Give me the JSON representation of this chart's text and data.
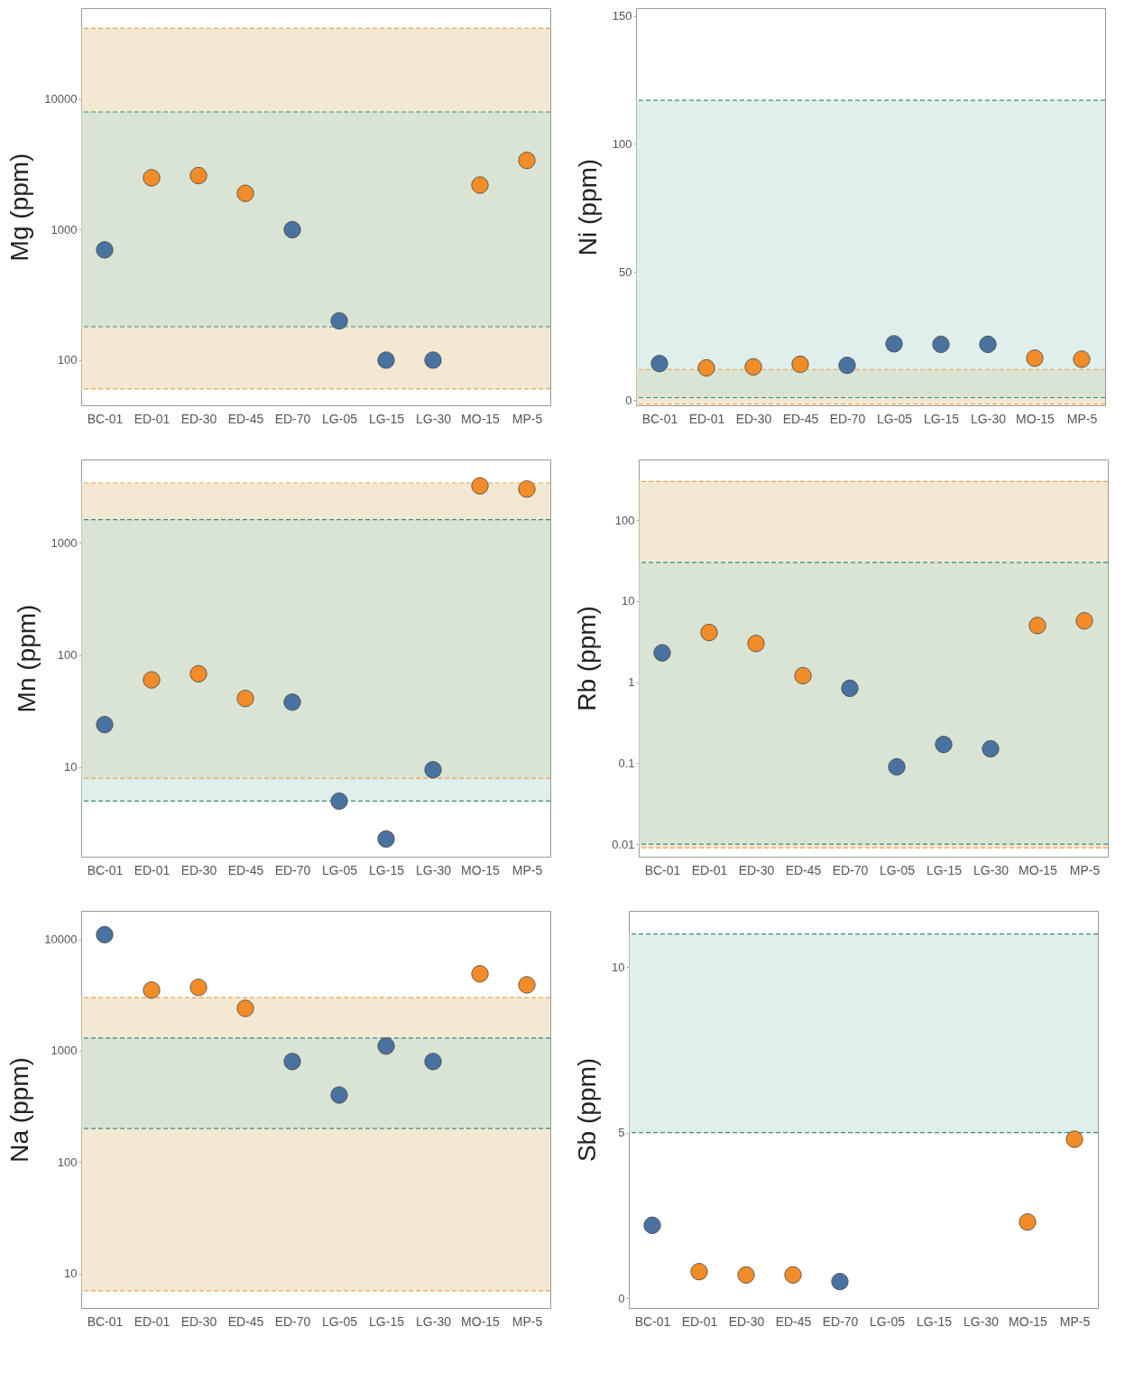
{
  "chart_data": [
    {
      "type": "scatter",
      "ylabel": "Mg (ppm)",
      "categories": [
        "BC-01",
        "ED-01",
        "ED-30",
        "ED-45",
        "ED-70",
        "LG-05",
        "LG-15",
        "LG-30",
        "MO-15",
        "MP-5"
      ],
      "values": [
        700,
        2500,
        2600,
        1900,
        1000,
        200,
        100,
        100,
        2200,
        3400
      ],
      "colors": [
        "#4a72a0",
        "#f28c28",
        "#f28c28",
        "#f28c28",
        "#4a72a0",
        "#4a72a0",
        "#4a72a0",
        "#4a72a0",
        "#f28c28",
        "#f28c28"
      ],
      "marker": "circle",
      "log": true,
      "ylim": [
        45,
        50000
      ],
      "yticks": [
        100,
        1000,
        10000
      ],
      "bands": [
        {
          "axis": "y",
          "from": 60,
          "to": 35000,
          "color": "#e8d4a8"
        },
        {
          "axis": "y",
          "from": 180,
          "to": 8000,
          "color": "#bfe0d8"
        }
      ],
      "ref_lines": [
        {
          "axis": "y",
          "value": 35000,
          "color": "#f0a050",
          "line_style": "dashed"
        },
        {
          "axis": "y",
          "value": 8000,
          "color": "#3a8a80",
          "line_style": "dashed"
        },
        {
          "axis": "y",
          "value": 180,
          "color": "#3a8a80",
          "line_style": "dashed"
        },
        {
          "axis": "y",
          "value": 60,
          "color": "#f0a050",
          "line_style": "dashed"
        }
      ]
    },
    {
      "type": "scatter",
      "ylabel": "Ni (ppm)",
      "categories": [
        "BC-01",
        "ED-01",
        "ED-30",
        "ED-45",
        "ED-70",
        "LG-05",
        "LG-15",
        "LG-30",
        "MO-15",
        "MP-5"
      ],
      "values": [
        14.3,
        12.6,
        13,
        14,
        13.6,
        22,
        21.8,
        21.8,
        16.4,
        16
      ],
      "colors": [
        "#4a72a0",
        "#f28c28",
        "#f28c28",
        "#f28c28",
        "#4a72a0",
        "#4a72a0",
        "#4a72a0",
        "#4a72a0",
        "#f28c28",
        "#f28c28"
      ],
      "marker": "circle",
      "ylim": [
        -2,
        153
      ],
      "yticks": [
        0,
        50,
        100,
        150
      ],
      "bands": [
        {
          "axis": "y",
          "from": -1.5,
          "to": 12,
          "color": "#e8d4a8"
        },
        {
          "axis": "y",
          "from": 1,
          "to": 117,
          "color": "#bfe0d8"
        }
      ],
      "ref_lines": [
        {
          "axis": "y",
          "value": 117,
          "color": "#3a8a80",
          "line_style": "dashed"
        },
        {
          "axis": "y",
          "value": 12,
          "color": "#f0a050",
          "line_style": "dashed"
        },
        {
          "axis": "y",
          "value": 1,
          "color": "#3a8a80",
          "line_style": "dashed"
        },
        {
          "axis": "y",
          "value": -1.5,
          "color": "#f0a050",
          "line_style": "dashed"
        }
      ]
    },
    {
      "type": "scatter",
      "ylabel": "Mn (ppm)",
      "categories": [
        "BC-01",
        "ED-01",
        "ED-30",
        "ED-45",
        "ED-70",
        "LG-05",
        "LG-15",
        "LG-30",
        "MO-15",
        "MP-5"
      ],
      "values": [
        24,
        60,
        68,
        41,
        38,
        5,
        2.3,
        9.5,
        3200,
        3000
      ],
      "colors": [
        "#4a72a0",
        "#f28c28",
        "#f28c28",
        "#f28c28",
        "#4a72a0",
        "#4a72a0",
        "#4a72a0",
        "#4a72a0",
        "#f28c28",
        "#f28c28"
      ],
      "marker": "circle",
      "log": true,
      "ylim": [
        1.6,
        5500
      ],
      "yticks": [
        10,
        100,
        1000
      ],
      "bands": [
        {
          "axis": "y",
          "from": 8,
          "to": 3400,
          "color": "#e8d4a8"
        },
        {
          "axis": "y",
          "from": 5,
          "to": 1600,
          "color": "#bfe0d8"
        }
      ],
      "ref_lines": [
        {
          "axis": "y",
          "value": 3400,
          "color": "#f0a050",
          "line_style": "dashed"
        },
        {
          "axis": "y",
          "value": 1600,
          "color": "#3a8a80",
          "line_style": "dashed"
        },
        {
          "axis": "y",
          "value": 8,
          "color": "#f0a050",
          "line_style": "dashed"
        },
        {
          "axis": "y",
          "value": 5,
          "color": "#3a8a80",
          "line_style": "dashed"
        }
      ]
    },
    {
      "type": "scatter",
      "ylabel": "Rb (ppm)",
      "categories": [
        "BC-01",
        "ED-01",
        "ED-30",
        "ED-45",
        "ED-70",
        "LG-05",
        "LG-15",
        "LG-30",
        "MO-15",
        "MP-5"
      ],
      "values": [
        2.3,
        4.1,
        3,
        1.2,
        0.84,
        0.09,
        0.17,
        0.15,
        5,
        5.7
      ],
      "colors": [
        "#4a72a0",
        "#f28c28",
        "#f28c28",
        "#f28c28",
        "#4a72a0",
        "#4a72a0",
        "#4a72a0",
        "#4a72a0",
        "#f28c28",
        "#f28c28"
      ],
      "marker": "circle",
      "log": true,
      "ylim": [
        0.007,
        560
      ],
      "yticks": [
        0.01,
        0.1,
        1,
        10,
        100
      ],
      "bands": [
        {
          "axis": "y",
          "from": 0.009,
          "to": 300,
          "color": "#e8d4a8"
        },
        {
          "axis": "y",
          "from": 0.01,
          "to": 30,
          "color": "#bfe0d8"
        }
      ],
      "ref_lines": [
        {
          "axis": "y",
          "value": 300,
          "color": "#f0a050",
          "line_style": "dashed"
        },
        {
          "axis": "y",
          "value": 30,
          "color": "#3a8a80",
          "line_style": "dashed"
        },
        {
          "axis": "y",
          "value": 0.01,
          "color": "#3a8a80",
          "line_style": "dashed"
        },
        {
          "axis": "y",
          "value": 0.009,
          "color": "#f0a050",
          "line_style": "dashed"
        }
      ]
    },
    {
      "type": "scatter",
      "ylabel": "Na (ppm)",
      "categories": [
        "BC-01",
        "ED-01",
        "ED-30",
        "ED-45",
        "ED-70",
        "LG-05",
        "LG-15",
        "LG-30",
        "MO-15",
        "MP-5"
      ],
      "values": [
        11000,
        3500,
        3700,
        2400,
        800,
        400,
        1100,
        800,
        4900,
        3900
      ],
      "colors": [
        "#4a72a0",
        "#f28c28",
        "#f28c28",
        "#f28c28",
        "#4a72a0",
        "#4a72a0",
        "#4a72a0",
        "#4a72a0",
        "#f28c28",
        "#f28c28"
      ],
      "marker": "circle",
      "log": true,
      "ylim": [
        4.9,
        18000
      ],
      "yticks": [
        10,
        100,
        1000,
        10000
      ],
      "bands": [
        {
          "axis": "y",
          "from": 7,
          "to": 3000,
          "color": "#e8d4a8"
        },
        {
          "axis": "y",
          "from": 200,
          "to": 1300,
          "color": "#bfe0d8"
        }
      ],
      "ref_lines": [
        {
          "axis": "y",
          "value": 3000,
          "color": "#f0a050",
          "line_style": "dashed"
        },
        {
          "axis": "y",
          "value": 1300,
          "color": "#3a8a80",
          "line_style": "dashed"
        },
        {
          "axis": "y",
          "value": 200,
          "color": "#3a8a80",
          "line_style": "dashed"
        },
        {
          "axis": "y",
          "value": 7,
          "color": "#f0a050",
          "line_style": "dashed"
        }
      ]
    },
    {
      "type": "scatter",
      "ylabel": "Sb (ppm)",
      "categories": [
        "BC-01",
        "ED-01",
        "ED-30",
        "ED-45",
        "ED-70",
        "LG-05",
        "LG-15",
        "LG-30",
        "MO-15",
        "MP-5"
      ],
      "values": [
        2.2,
        0.8,
        0.7,
        0.7,
        0.5,
        null,
        null,
        null,
        2.3,
        4.8
      ],
      "colors": [
        "#4a72a0",
        "#f28c28",
        "#f28c28",
        "#f28c28",
        "#4a72a0",
        null,
        null,
        null,
        "#f28c28",
        "#f28c28"
      ],
      "marker": "circle",
      "ylim": [
        -0.3,
        11.7
      ],
      "yticks": [
        0,
        5,
        10
      ],
      "bands": [
        {
          "axis": "y",
          "from": 5,
          "to": 11,
          "color": "#bfe0d8"
        }
      ],
      "ref_lines": [
        {
          "axis": "y",
          "value": 11,
          "color": "#3a8a80",
          "line_style": "dashed"
        },
        {
          "axis": "y",
          "value": 5,
          "color": "#3a8a80",
          "line_style": "dashed"
        }
      ]
    }
  ]
}
